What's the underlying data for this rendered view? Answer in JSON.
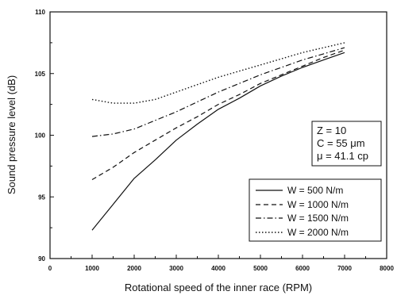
{
  "chart_data": {
    "type": "line",
    "xlabel": "Rotational speed of the inner race (RPM)",
    "ylabel": "Sound pressure level (dB)",
    "xlim": [
      0,
      8000
    ],
    "ylim": [
      90,
      110
    ],
    "xticks": [
      0,
      1000,
      2000,
      3000,
      4000,
      5000,
      6000,
      7000,
      8000
    ],
    "yticks": [
      90,
      95,
      100,
      105,
      110
    ],
    "grid": false,
    "legend_position": "bottom-right",
    "annotation_lines": [
      "Z = 10",
      "C = 55 μm",
      "μ = 41.1 cp"
    ],
    "series": [
      {
        "name": "W = 500 N/m",
        "dash": "solid",
        "x": [
          1000,
          1500,
          2000,
          2500,
          3000,
          3500,
          4000,
          4500,
          5000,
          5500,
          6000,
          6500,
          7000
        ],
        "values": [
          92.3,
          94.4,
          96.5,
          98.0,
          99.6,
          100.9,
          102.1,
          103.0,
          104.0,
          104.8,
          105.5,
          106.1,
          106.7
        ]
      },
      {
        "name": "W = 1000 N/m",
        "dash": "dashed",
        "x": [
          1000,
          1500,
          2000,
          2500,
          3000,
          3500,
          4000,
          4500,
          5000,
          5500,
          6000,
          6500,
          7000
        ],
        "values": [
          96.4,
          97.4,
          98.6,
          99.6,
          100.6,
          101.5,
          102.5,
          103.3,
          104.2,
          104.9,
          105.6,
          106.3,
          106.9
        ]
      },
      {
        "name": "W = 1500 N/m",
        "dash": "dash-dot",
        "x": [
          1000,
          1500,
          2000,
          2500,
          3000,
          3500,
          4000,
          4500,
          5000,
          5500,
          6000,
          6500,
          7000
        ],
        "values": [
          99.9,
          100.1,
          100.5,
          101.2,
          101.9,
          102.7,
          103.5,
          104.2,
          104.9,
          105.5,
          106.1,
          106.6,
          107.1
        ]
      },
      {
        "name": "W = 2000 N/m",
        "dash": "dotted",
        "x": [
          1000,
          1500,
          2000,
          2500,
          3000,
          3500,
          4000,
          4500,
          5000,
          5500,
          6000,
          6500,
          7000
        ],
        "values": [
          102.9,
          102.6,
          102.6,
          102.9,
          103.5,
          104.1,
          104.7,
          105.2,
          105.7,
          106.2,
          106.7,
          107.1,
          107.5
        ]
      }
    ]
  }
}
